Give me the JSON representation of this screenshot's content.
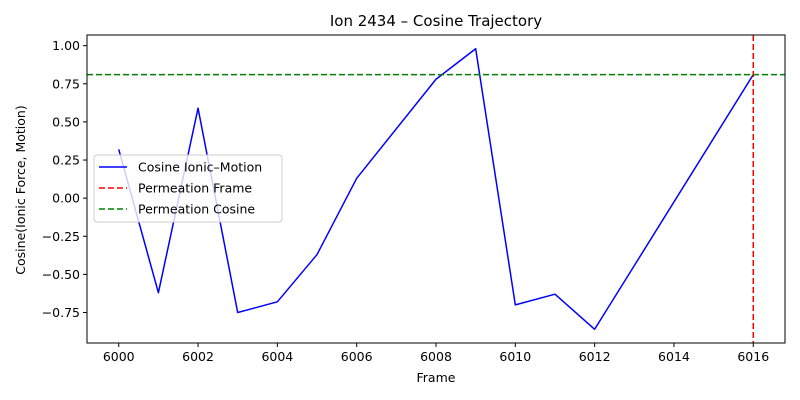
{
  "chart_data": {
    "type": "line",
    "title": "Ion 2434 – Cosine Trajectory",
    "xlabel": "Frame",
    "ylabel": "Cosine(Ionic Force, Motion)",
    "xlim": [
      5999.2,
      6016.8
    ],
    "ylim": [
      -0.95,
      1.07
    ],
    "xticks": [
      6000,
      6002,
      6004,
      6006,
      6008,
      6010,
      6012,
      6014,
      6016
    ],
    "yticks": [
      -0.75,
      -0.5,
      -0.25,
      0.0,
      0.25,
      0.5,
      0.75,
      1.0
    ],
    "ytick_labels": [
      "−0.75",
      "−0.50",
      "−0.25",
      "0.00",
      "0.25",
      "0.50",
      "0.75",
      "1.00"
    ],
    "grid": false,
    "legend_position": "center-left",
    "series": [
      {
        "name": "Cosine Ionic–Motion",
        "color": "#0000ff",
        "style": "solid",
        "x": [
          6000,
          6001,
          6002,
          6003,
          6004,
          6005,
          6006,
          6008,
          6009,
          6010,
          6011,
          6012,
          6016
        ],
        "y": [
          0.32,
          -0.62,
          0.59,
          -0.75,
          -0.68,
          -0.37,
          0.13,
          0.78,
          0.98,
          -0.7,
          -0.63,
          -0.86,
          0.81
        ]
      }
    ],
    "reference_lines": [
      {
        "name": "Permeation Frame",
        "orientation": "vertical",
        "value": 6016,
        "color": "#ff0000",
        "style": "dashed"
      },
      {
        "name": "Permeation Cosine",
        "orientation": "horizontal",
        "value": 0.81,
        "color": "#008000",
        "style": "dashed"
      }
    ]
  }
}
